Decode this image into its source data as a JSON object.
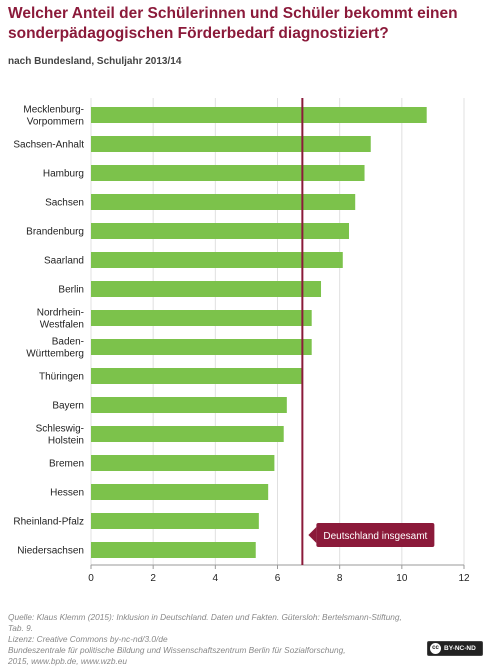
{
  "title": "Welcher Anteil der Schülerinnen und Schüler bekommt einen sonderpädagogischen Förderbedarf diagnostiziert?",
  "subtitle": "nach Bundesland, Schuljahr 2013/14",
  "source_lines": [
    "Quelle: Klaus Klemm (2015): Inklusion in Deutschland. Daten und Fakten. Gütersloh: Bertelsmann-Stiftung, Tab. 9.",
    "Lizenz: Creative Commons by-nc-nd/3.0/de",
    "Bundeszentrale für politische Bildung und Wissenschaftszentrum Berlin für Sozialforschung,",
    "2015, www.bpb.de, www.wzb.eu"
  ],
  "license_badge": {
    "icon": "cc-icon",
    "text": "BY-NC-ND"
  },
  "colors": {
    "bar": "#7cc24b",
    "title": "#8b1a3a",
    "reference": "#8b1a3a",
    "annotation_bg": "#8b1a3a",
    "grid": "#e0e0e0"
  },
  "chart_data": {
    "type": "bar",
    "orientation": "horizontal",
    "title": "Welcher Anteil der Schülerinnen und Schüler bekommt einen sonderpädagogischen Förderbedarf diagnostiziert?",
    "subtitle": "nach Bundesland, Schuljahr 2013/14",
    "categories": [
      [
        "Mecklenburg-",
        "Vorpommern"
      ],
      [
        "Sachsen-Anhalt"
      ],
      [
        "Hamburg"
      ],
      [
        "Sachsen"
      ],
      [
        "Brandenburg"
      ],
      [
        "Saarland"
      ],
      [
        "Berlin"
      ],
      [
        "Nordrhein-",
        "Westfalen"
      ],
      [
        "Baden-",
        "Württemberg"
      ],
      [
        "Thüringen"
      ],
      [
        "Bayern"
      ],
      [
        "Schleswig-",
        "Holstein"
      ],
      [
        "Bremen"
      ],
      [
        "Hessen"
      ],
      [
        "Rheinland-Pfalz"
      ],
      [
        "Niedersachsen"
      ]
    ],
    "values": [
      10.8,
      9.0,
      8.8,
      8.5,
      8.3,
      8.1,
      7.4,
      7.1,
      7.1,
      6.8,
      6.3,
      6.2,
      5.9,
      5.7,
      5.4,
      5.3
    ],
    "xlim": [
      0,
      12
    ],
    "xticks": [
      0,
      2,
      4,
      6,
      8,
      10,
      12
    ],
    "grid": true,
    "reference_line": {
      "value": 6.8,
      "label": "Deutschland insgesamt"
    }
  }
}
